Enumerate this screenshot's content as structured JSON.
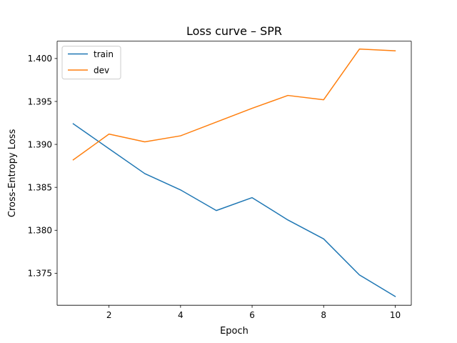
{
  "chart_data": {
    "type": "line",
    "title": "Loss curve – SPR",
    "xlabel": "Epoch",
    "ylabel": "Cross-Entropy Loss",
    "x": [
      1,
      2,
      3,
      4,
      5,
      6,
      7,
      8,
      9,
      10
    ],
    "xlim": [
      0.55,
      10.45
    ],
    "ylim": [
      1.37127,
      1.40202
    ],
    "xticks": [
      2,
      4,
      6,
      8,
      10
    ],
    "xtick_labels": [
      "2",
      "4",
      "6",
      "8",
      "10"
    ],
    "yticks": [
      1.375,
      1.38,
      1.385,
      1.39,
      1.395,
      1.4
    ],
    "ytick_labels": [
      "1.375",
      "1.380",
      "1.385",
      "1.390",
      "1.395",
      "1.400"
    ],
    "grid": false,
    "legend_position": "top-left",
    "series": [
      {
        "name": "train",
        "color": "#1f77b4",
        "values": [
          1.3924,
          1.3895,
          1.3866,
          1.3847,
          1.3823,
          1.3838,
          1.3812,
          1.379,
          1.3748,
          1.3723
        ]
      },
      {
        "name": "dev",
        "color": "#ff7f0e",
        "values": [
          1.3882,
          1.3912,
          1.3903,
          1.391,
          1.3926,
          1.3942,
          1.3957,
          1.3952,
          1.4011,
          1.4009
        ]
      }
    ]
  }
}
